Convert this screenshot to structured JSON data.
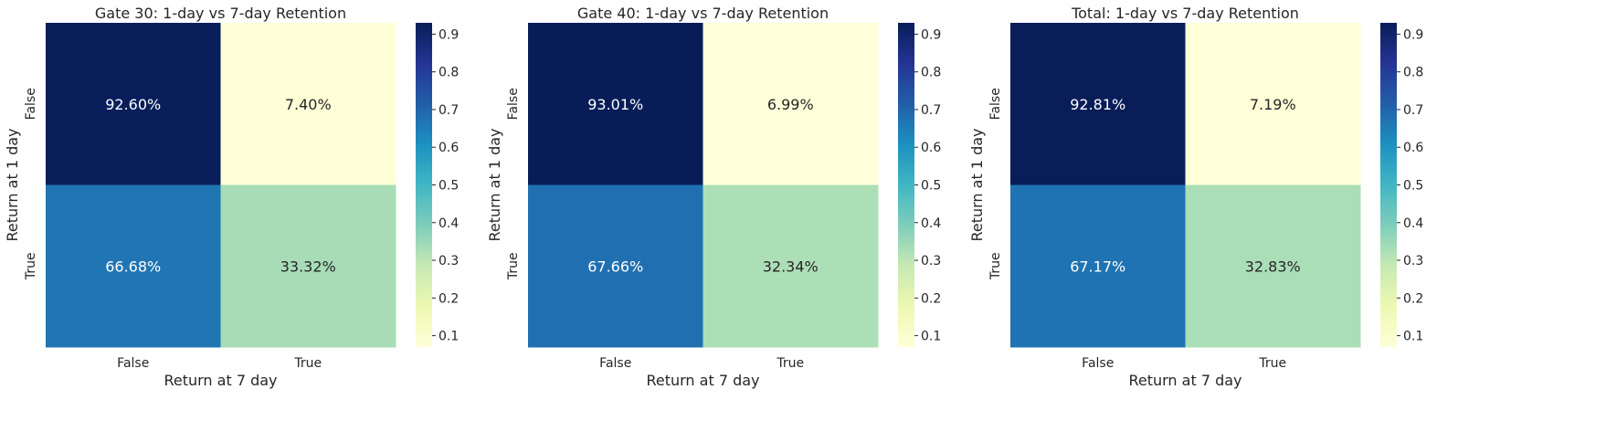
{
  "chart_data": [
    {
      "type": "heatmap",
      "title": "Gate 30: 1-day vs 7-day Retention",
      "xlabel": "Return at 7 day",
      "ylabel": "Return at 1 day",
      "x_categories": [
        "False",
        "True"
      ],
      "y_categories": [
        "False",
        "True"
      ],
      "values": [
        [
          0.926,
          0.074
        ],
        [
          0.6668,
          0.3332
        ]
      ],
      "cell_labels": [
        [
          "92.60%",
          "7.40%"
        ],
        [
          "66.68%",
          "33.32%"
        ]
      ],
      "colorbar": {
        "colormap": "YlGnBu",
        "range": [
          0.0699,
          0.9301
        ],
        "ticks": [
          "0.1",
          "0.2",
          "0.3",
          "0.4",
          "0.5",
          "0.6",
          "0.7",
          "0.8",
          "0.9"
        ]
      }
    },
    {
      "type": "heatmap",
      "title": "Gate 40: 1-day vs 7-day Retention",
      "xlabel": "Return at 7 day",
      "ylabel": "Return at 1 day",
      "x_categories": [
        "False",
        "True"
      ],
      "y_categories": [
        "False",
        "True"
      ],
      "values": [
        [
          0.9301,
          0.0699
        ],
        [
          0.6766,
          0.3234
        ]
      ],
      "cell_labels": [
        [
          "93.01%",
          "6.99%"
        ],
        [
          "67.66%",
          "32.34%"
        ]
      ],
      "colorbar": {
        "colormap": "YlGnBu",
        "range": [
          0.0699,
          0.9301
        ],
        "ticks": [
          "0.1",
          "0.2",
          "0.3",
          "0.4",
          "0.5",
          "0.6",
          "0.7",
          "0.8",
          "0.9"
        ]
      }
    },
    {
      "type": "heatmap",
      "title": "Total: 1-day vs 7-day Retention",
      "xlabel": "Return at 7 day",
      "ylabel": "Return at 1 day",
      "x_categories": [
        "False",
        "True"
      ],
      "y_categories": [
        "False",
        "True"
      ],
      "values": [
        [
          0.9281,
          0.0719
        ],
        [
          0.6717,
          0.3283
        ]
      ],
      "cell_labels": [
        [
          "92.81%",
          "7.19%"
        ],
        [
          "67.17%",
          "32.83%"
        ]
      ],
      "colorbar": {
        "colormap": "YlGnBu",
        "range": [
          0.0699,
          0.9301
        ],
        "ticks": [
          "0.1",
          "0.2",
          "0.3",
          "0.4",
          "0.5",
          "0.6",
          "0.7",
          "0.8",
          "0.9"
        ]
      }
    }
  ]
}
